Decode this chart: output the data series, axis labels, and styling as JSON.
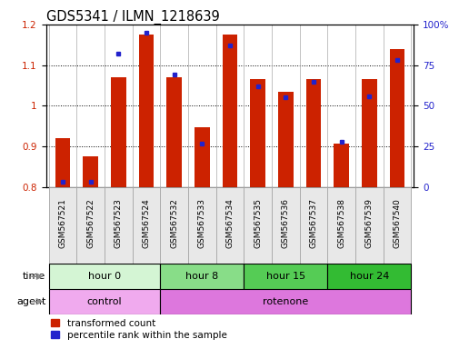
{
  "title": "GDS5341 / ILMN_1218639",
  "samples": [
    "GSM567521",
    "GSM567522",
    "GSM567523",
    "GSM567524",
    "GSM567532",
    "GSM567533",
    "GSM567534",
    "GSM567535",
    "GSM567536",
    "GSM567537",
    "GSM567538",
    "GSM567539",
    "GSM567540"
  ],
  "red_values": [
    0.921,
    0.875,
    1.07,
    1.175,
    1.07,
    0.948,
    1.175,
    1.065,
    1.035,
    1.065,
    0.908,
    1.065,
    1.14
  ],
  "blue_values": [
    3.5,
    3.0,
    82,
    95,
    69,
    27,
    87,
    62,
    55,
    65,
    28,
    56,
    78
  ],
  "ylim_left": [
    0.8,
    1.2
  ],
  "ylim_right": [
    0,
    100
  ],
  "yticks_left": [
    0.8,
    0.9,
    1.0,
    1.1,
    1.2
  ],
  "yticks_right": [
    0,
    25,
    50,
    75,
    100
  ],
  "ytick_labels_right": [
    "0",
    "25",
    "50",
    "75",
    "100%"
  ],
  "time_groups": [
    {
      "label": "hour 0",
      "start": 0,
      "end": 4,
      "color": "#d4f5d4"
    },
    {
      "label": "hour 8",
      "start": 4,
      "end": 7,
      "color": "#88dd88"
    },
    {
      "label": "hour 15",
      "start": 7,
      "end": 10,
      "color": "#55cc55"
    },
    {
      "label": "hour 24",
      "start": 10,
      "end": 13,
      "color": "#33bb33"
    }
  ],
  "agent_groups": [
    {
      "label": "control",
      "start": 0,
      "end": 4,
      "color": "#f0aaee"
    },
    {
      "label": "rotenone",
      "start": 4,
      "end": 13,
      "color": "#dd77dd"
    }
  ],
  "bar_color": "#cc2200",
  "dot_color": "#2222cc",
  "bar_width": 0.55,
  "legend_red": "transformed count",
  "legend_blue": "percentile rank within the sample",
  "time_label": "time",
  "agent_label": "agent",
  "tick_fontsize": 7.5,
  "title_fontsize": 10.5
}
